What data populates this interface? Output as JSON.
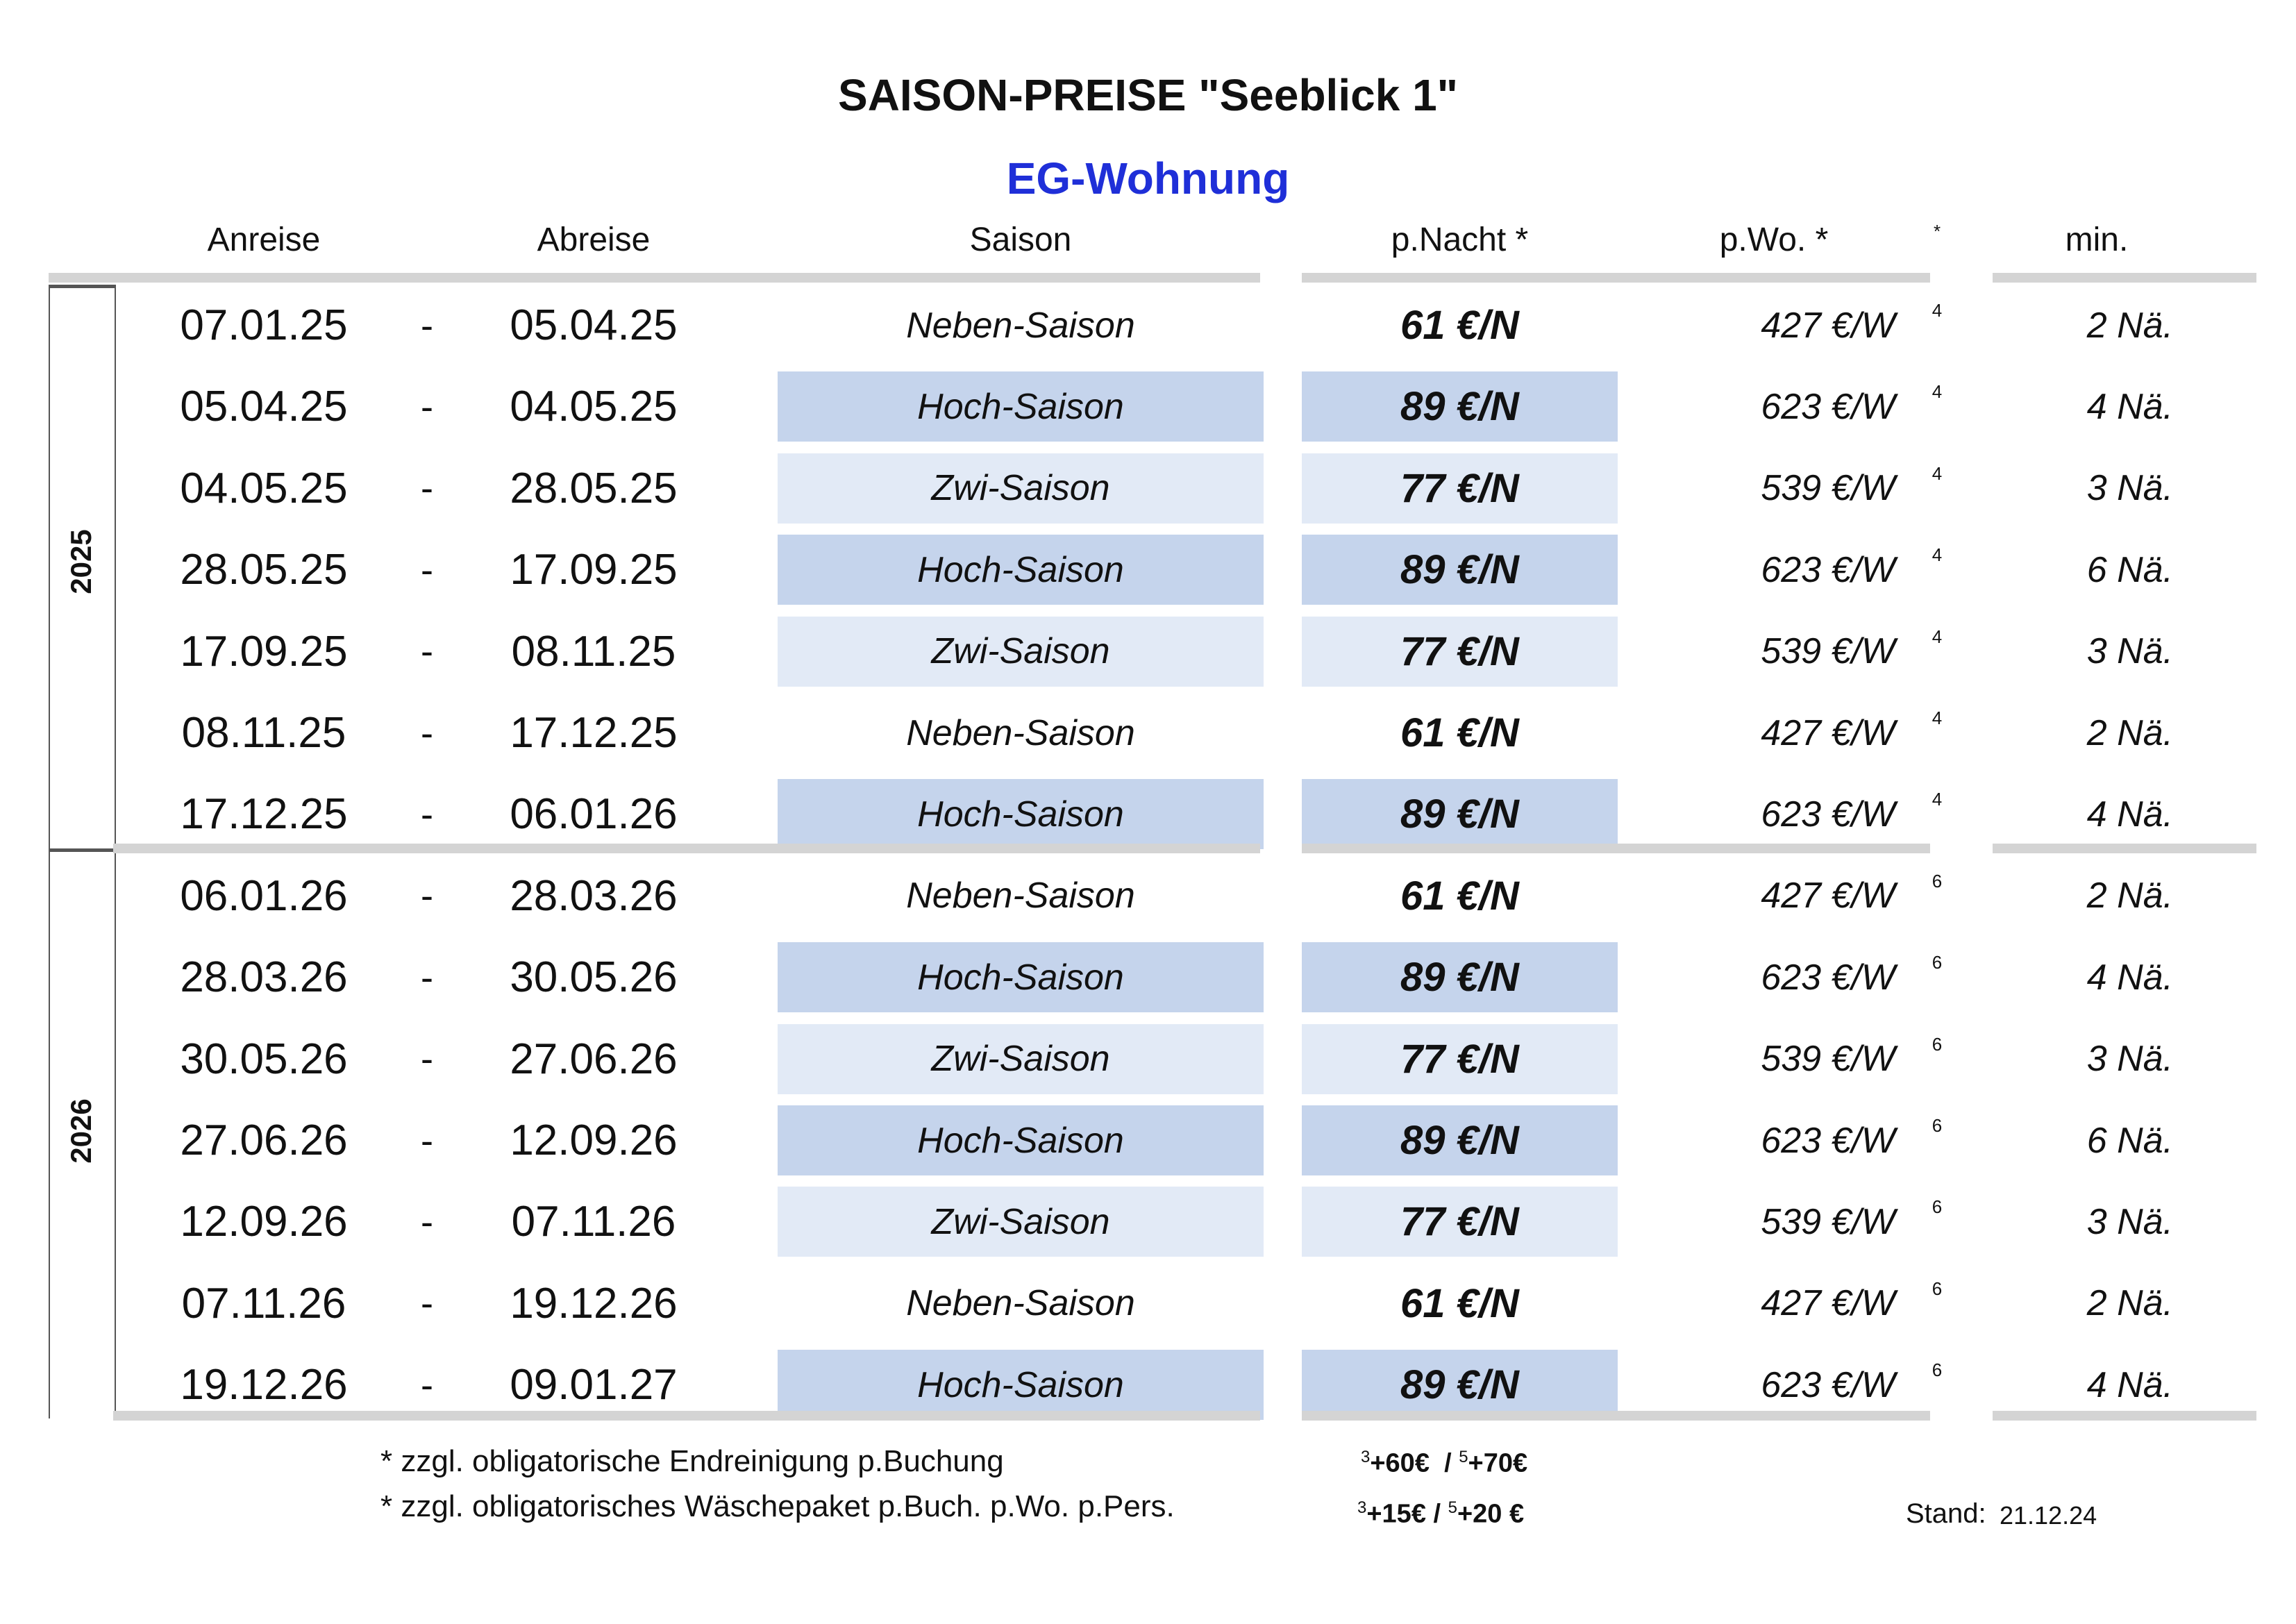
{
  "title": "SAISON-PREISE \"Seeblick 1\"",
  "subtitle": "EG-Wohnung",
  "colors": {
    "subtitle": "#1f2fd8",
    "hoch": "#c5d4ec",
    "zwi": "#e2eaf6",
    "neben": "#ffffff",
    "bar": "#d4d4d4"
  },
  "headers": {
    "anreise": "Anreise",
    "abreise": "Abreise",
    "saison": "Saison",
    "nacht": "p.Nacht *",
    "woche": "p.Wo. *",
    "star": "*",
    "min": "min."
  },
  "years": [
    "2025",
    "2026"
  ],
  "rows": [
    {
      "from": "07.01.25",
      "dash": "-",
      "to": "05.04.25",
      "season": "Neben-Saison",
      "type": "neben",
      "night": "61 €/N",
      "week": "427 €/W",
      "sup": "4",
      "min": "2 Nä."
    },
    {
      "from": "05.04.25",
      "dash": "-",
      "to": "04.05.25",
      "season": "Hoch-Saison",
      "type": "hoch",
      "night": "89 €/N",
      "week": "623 €/W",
      "sup": "4",
      "min": "4 Nä."
    },
    {
      "from": "04.05.25",
      "dash": "-",
      "to": "28.05.25",
      "season": "Zwi-Saison",
      "type": "zwi",
      "night": "77 €/N",
      "week": "539 €/W",
      "sup": "4",
      "min": "3 Nä."
    },
    {
      "from": "28.05.25",
      "dash": "-",
      "to": "17.09.25",
      "season": "Hoch-Saison",
      "type": "hoch",
      "night": "89 €/N",
      "week": "623 €/W",
      "sup": "4",
      "min": "6 Nä."
    },
    {
      "from": "17.09.25",
      "dash": "-",
      "to": "08.11.25",
      "season": "Zwi-Saison",
      "type": "zwi",
      "night": "77 €/N",
      "week": "539 €/W",
      "sup": "4",
      "min": "3 Nä."
    },
    {
      "from": "08.11.25",
      "dash": "-",
      "to": "17.12.25",
      "season": "Neben-Saison",
      "type": "neben",
      "night": "61 €/N",
      "week": "427 €/W",
      "sup": "4",
      "min": "2 Nä."
    },
    {
      "from": "17.12.25",
      "dash": "-",
      "to": "06.01.26",
      "season": "Hoch-Saison",
      "type": "hoch",
      "night": "89 €/N",
      "week": "623 €/W",
      "sup": "4",
      "min": "4 Nä."
    },
    {
      "from": "06.01.26",
      "dash": "-",
      "to": "28.03.26",
      "season": "Neben-Saison",
      "type": "neben",
      "night": "61 €/N",
      "week": "427 €/W",
      "sup": "6",
      "min": "2 Nä."
    },
    {
      "from": "28.03.26",
      "dash": "-",
      "to": "30.05.26",
      "season": "Hoch-Saison",
      "type": "hoch",
      "night": "89 €/N",
      "week": "623 €/W",
      "sup": "6",
      "min": "4 Nä."
    },
    {
      "from": "30.05.26",
      "dash": "-",
      "to": "27.06.26",
      "season": "Zwi-Saison",
      "type": "zwi",
      "night": "77 €/N",
      "week": "539 €/W",
      "sup": "6",
      "min": "3 Nä."
    },
    {
      "from": "27.06.26",
      "dash": "-",
      "to": "12.09.26",
      "season": "Hoch-Saison",
      "type": "hoch",
      "night": "89 €/N",
      "week": "623 €/W",
      "sup": "6",
      "min": "6 Nä."
    },
    {
      "from": "12.09.26",
      "dash": "-",
      "to": "07.11.26",
      "season": "Zwi-Saison",
      "type": "zwi",
      "night": "77 €/N",
      "week": "539 €/W",
      "sup": "6",
      "min": "3 Nä."
    },
    {
      "from": "07.11.26",
      "dash": "-",
      "to": "19.12.26",
      "season": "Neben-Saison",
      "type": "neben",
      "night": "61 €/N",
      "week": "427 €/W",
      "sup": "6",
      "min": "2 Nä."
    },
    {
      "from": "19.12.26",
      "dash": "-",
      "to": "09.01.27",
      "season": "Hoch-Saison",
      "type": "hoch",
      "night": "89 €/N",
      "week": "623 €/W",
      "sup": "6",
      "min": "4 Nä."
    }
  ],
  "footer": {
    "line1": "* zzgl. obligatorische Endreinigung p.Buchung",
    "line2": "* zzgl. obligatorisches Wäschepaket p.Buch. p.Wo. p.Pers.",
    "fee1": {
      "sup_a": "3",
      "val_a": "+60€  / ",
      "sup_b": "5",
      "val_b": "+70€"
    },
    "fee2": {
      "sup_a": "3",
      "val_a": "+15€ / ",
      "sup_b": "5",
      "val_b": "+20 €"
    },
    "stand_label": "Stand:",
    "stand_date": "21.12.24"
  }
}
